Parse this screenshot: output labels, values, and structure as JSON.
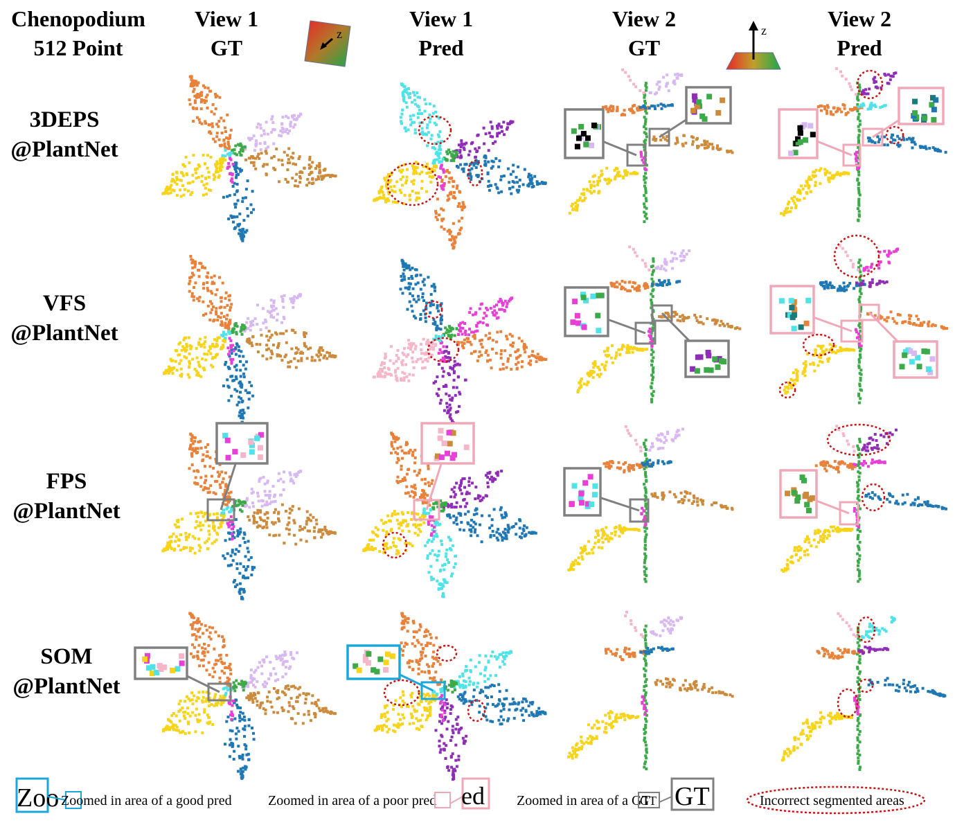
{
  "corner": {
    "line1": "Chenopodium",
    "line2": "512 Point"
  },
  "columns": [
    {
      "line1": "View 1",
      "line2": "GT"
    },
    {
      "line1": "View 1",
      "line2": "Pred"
    },
    {
      "line1": "View 2",
      "line2": "GT"
    },
    {
      "line1": "View 2",
      "line2": "Pred"
    }
  ],
  "axis_labels": {
    "view1": "z",
    "view2": "z"
  },
  "rows": [
    {
      "line1": "3DEPS",
      "line2": "@PlantNet",
      "pred_zoom": "poor"
    },
    {
      "line1": "VFS",
      "line2": "@PlantNet",
      "pred_zoom": "poor"
    },
    {
      "line1": "FPS",
      "line2": "@PlantNet",
      "pred_zoom": "poor"
    },
    {
      "line1": "SOM",
      "line2": "@PlantNet",
      "pred_zoom": "good"
    }
  ],
  "legend": {
    "good": "Zoomed in area of a good pred",
    "poor": "Zoomed in area of a poor pred",
    "gt": "Zoomed in area of a GT",
    "incorrect": "Incorrect segmented areas",
    "good_glyph": "Zoo",
    "poor_glyph": "ed",
    "gt_glyph": "GT"
  },
  "colors": {
    "orange": "#e8823a",
    "lavender": "#d7b8f0",
    "tan": "#cc8a3c",
    "yellow": "#f7d31a",
    "blue": "#1f78b4",
    "green": "#3caa48",
    "magenta": "#e83fd6",
    "cyan": "#4fe3e8",
    "purple": "#8e2db5",
    "pink": "#f4b6c8",
    "teal": "#1b7a7a",
    "gt_box": "#808080",
    "poor_box": "#f0a8b8",
    "good_box": "#1aa8dc",
    "incorrect": "#cc1111"
  }
}
